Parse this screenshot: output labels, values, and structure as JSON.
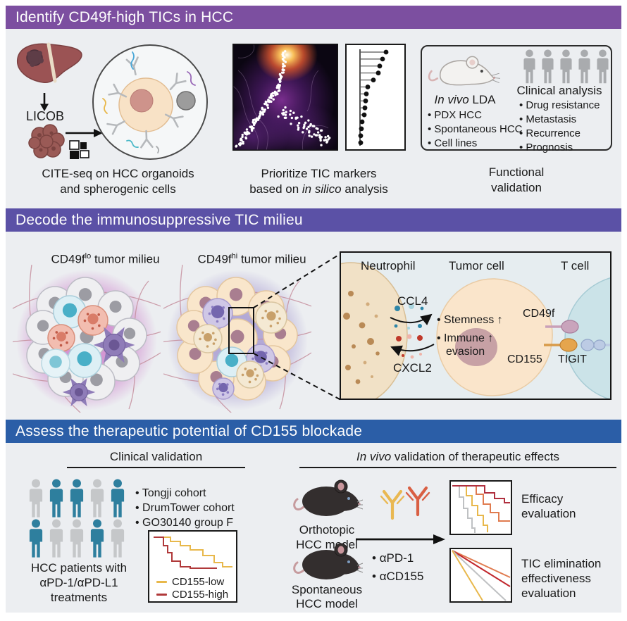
{
  "palette": {
    "header1": "#7C4FA0",
    "header2": "#5B51A6",
    "header3": "#2B5EA7",
    "panel_bg": "#ECEEF1",
    "detail_box_bg": "#E6EDF0",
    "person_gray": "#A9ABAE",
    "person_light": "#C5C7C9",
    "person_teal": "#2E7F9E",
    "km_low_color": "#E8B84B",
    "km_high_color": "#B0393A",
    "antibody_yellow": "#E9B852",
    "antibody_red": "#D95F43"
  },
  "s1": {
    "header": "Identify CD49f-high TICs in HCC",
    "licob": "LICOB",
    "cite_caption_l1": "CITE-seq on HCC organoids",
    "cite_caption_l2": "and spherogenic cells",
    "insilico_l1": "Prioritize TIC markers",
    "insilico_l2_pre": "based on ",
    "insilico_l2_italic": "in silico",
    "insilico_l2_post": " analysis",
    "lda_title_italic": "In vivo",
    "lda_title_rest": " LDA",
    "lda_items": [
      "PDX HCC",
      "Spontaneous HCC",
      "Cell lines"
    ],
    "clinical_title": "Clinical analysis",
    "clinical_items": [
      "Drug resistance",
      "Metastasis",
      "Recurrence",
      "Prognosis"
    ],
    "func_l1": "Functional",
    "func_l2": "validation"
  },
  "s2": {
    "header": "Decode the immunosuppressive TIC milieu",
    "lo_pre": "CD49f",
    "lo_sup": "lo",
    "lo_post": " tumor milieu",
    "hi_pre": "CD49f",
    "hi_sup": "hi",
    "hi_post": " tumor milieu",
    "neutrophil": "Neutrophil",
    "tumor_cell": "Tumor cell",
    "t_cell": "T cell",
    "ccl4": "CCL4",
    "cxcl2": "CXCL2",
    "stemness": "• Stemness ↑",
    "immune_l1": "• Immune ↑",
    "immune_l2": "evasion",
    "cd49f": "CD49f",
    "cd155": "CD155",
    "tigit": "TIGIT"
  },
  "s3": {
    "header": "Assess the therapeutic potential of CD155 blockade",
    "clinical_title": "Clinical validation",
    "cohorts": [
      "Tongji cohort",
      "DrumTower cohort",
      "GO30140 group F"
    ],
    "patients_l1": "HCC patients with",
    "patients_l2": "αPD-1/αPD-L1",
    "patients_l3": "treatments",
    "km_legend": [
      {
        "label": "CD155-low",
        "color": "#E8B84B"
      },
      {
        "label": "CD155-high",
        "color": "#B0393A"
      }
    ],
    "invivo_title_italic": "In vivo",
    "invivo_title_rest": " validation of therapeutic effects",
    "model1_l1": "Orthotopic",
    "model1_l2": "HCC model",
    "model2_l1": "Spontaneous",
    "model2_l2": "HCC model",
    "treatments": [
      "αPD-1",
      "αCD155"
    ],
    "efficacy_l1": "Efficacy",
    "efficacy_l2": "evaluation",
    "tic_l1": "TIC elimination",
    "tic_l2": "effectiveness",
    "tic_l3": "evaluation"
  }
}
